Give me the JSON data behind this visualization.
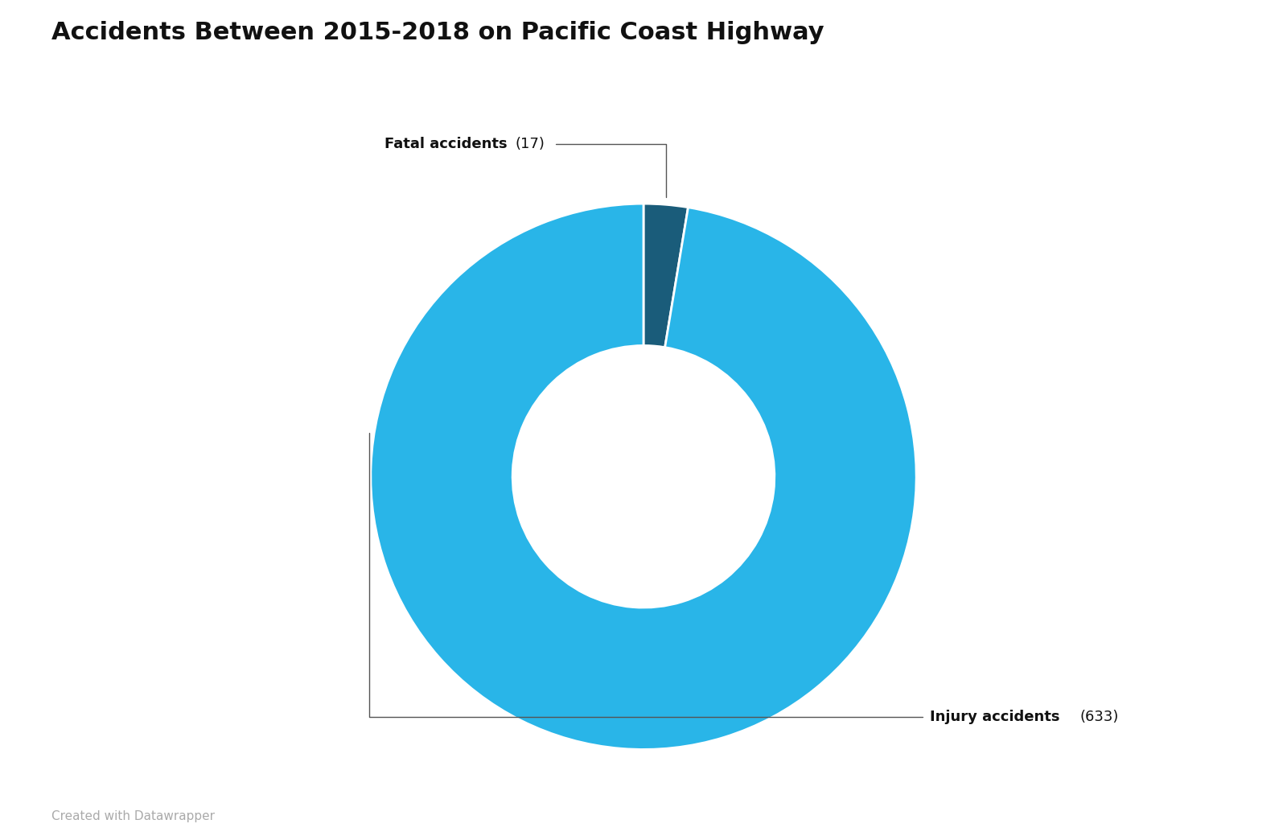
{
  "title": "Accidents Between 2015-2018 on Pacific Coast Highway",
  "slices": [
    {
      "label": "Fatal accidents",
      "value": 17,
      "color": "#1a5c7a"
    },
    {
      "label": "Injury accidents",
      "value": 633,
      "color": "#29b5e8"
    }
  ],
  "background_color": "#ffffff",
  "title_fontsize": 22,
  "title_fontweight": "bold",
  "annotation_label_fontsize": 13,
  "annotation_count_fontsize": 13,
  "footer_text": "Created with Datawrapper",
  "footer_color": "#aaaaaa",
  "footer_fontsize": 11,
  "donut_width": 0.52,
  "line_color": "#555555"
}
